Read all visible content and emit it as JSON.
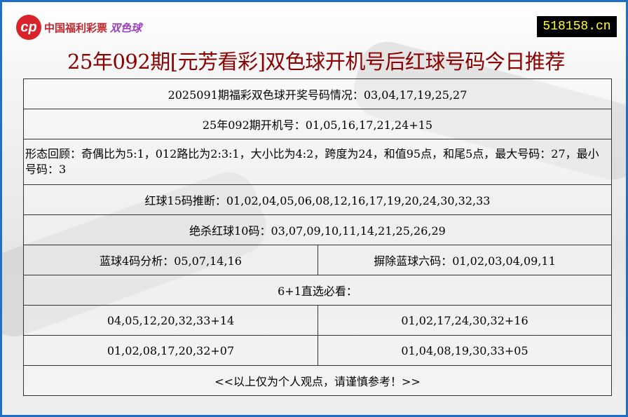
{
  "logo": {
    "mark": "cp",
    "text": "中国福利彩票",
    "brand": "双色球"
  },
  "site": "518158.cn",
  "title": "25年092期[元芳看彩]双色球开机号后红球号码今日推荐",
  "rows": {
    "r1": "2025091期福彩双色球开奖号码情况：03,04,17,19,25,27",
    "r2": "25年092期开机号：01,05,16,17,21,24+15",
    "r3": "形态回顾：奇偶比为5:1，012路比为2:3:1，大小比为4:2，跨度为24，和值95点，和尾5点，最大号码：27，最小号码：3",
    "r4": "红球15码推断：01,02,04,05,06,08,12,16,17,19,20,24,30,32,33",
    "r5": "绝杀红球10码：03,07,09,10,11,14,21,25,26,29",
    "r6a": "蓝球4码分析：05,07,14,16",
    "r6b": "摒除蓝球六码：01,02,03,04,09,11",
    "r7": "6+1直选必看：",
    "r8a": "04,05,12,20,32,33+14",
    "r8b": "01,02,17,24,30,32+16",
    "r9a": "01,02,08,17,20,32+07",
    "r9b": "01,04,08,19,30,33+05",
    "r10": "<<以上仅为个人观点，请谨慎参考！>>"
  }
}
